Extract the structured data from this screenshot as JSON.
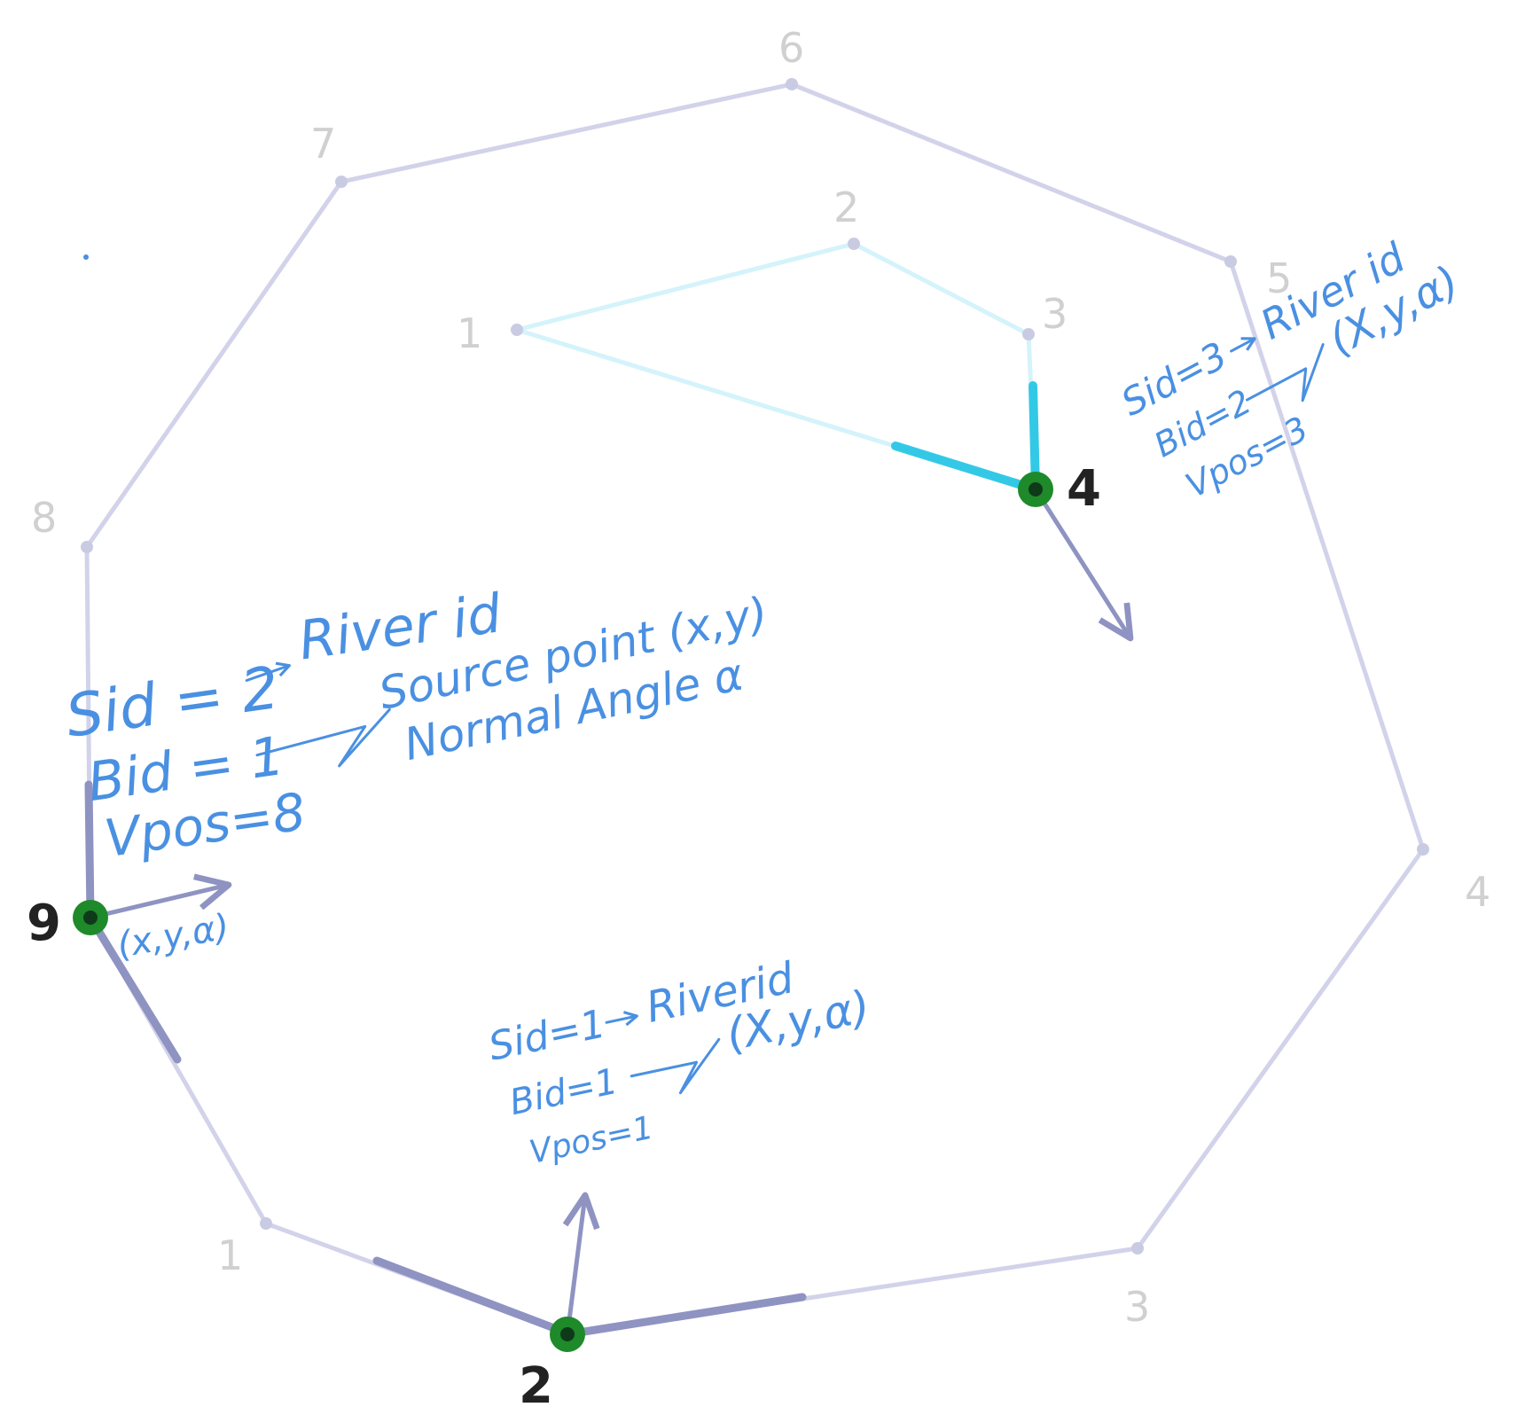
{
  "outer_polygon": {
    "vertex_labels": [
      "1",
      "2",
      "3",
      "4",
      "5",
      "6",
      "7",
      "8",
      "9"
    ]
  },
  "inner_polygon": {
    "vertex_labels": [
      "1",
      "2",
      "3",
      "4"
    ]
  },
  "sources": [
    {
      "vertex_label": "2",
      "lines": [
        "Sid=1",
        "Bid=1",
        "Vpos=1"
      ],
      "river_label": "Riverid",
      "output_label": "(X,y,α)"
    },
    {
      "vertex_label": "9",
      "lines": [
        "Sid = 2",
        "Bid = 1",
        "Vpos=8"
      ],
      "river_label": "River id",
      "output_lines": [
        "Source point (x,y)",
        "Normal Angle α"
      ],
      "point_label": "(x,y,α)"
    },
    {
      "vertex_label": "4",
      "lines": [
        "Sid=3",
        "Bid=2",
        "Vpos=3"
      ],
      "river_label": "River id",
      "output_label": "(X,y,α)"
    }
  ],
  "colors": {
    "outer_edge": "#d2d3ea",
    "inner_edge": "#d4f3fb",
    "highlight_outer": "#8f93c2",
    "highlight_inner": "#33c9e6",
    "source_point": "#1e8a2a",
    "annotation": "#4a90e2"
  }
}
